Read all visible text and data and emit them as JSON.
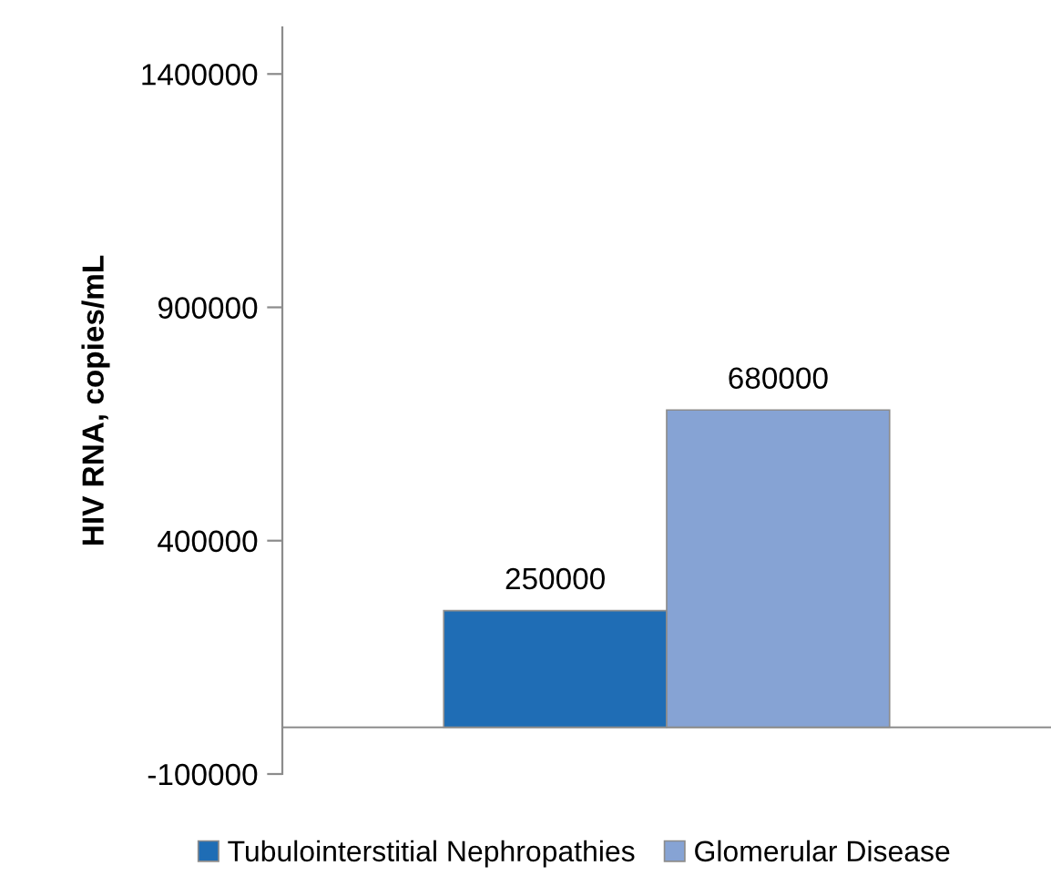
{
  "chart_data": {
    "type": "bar",
    "ylabel": "HIV RNA, copies/mL",
    "categories": [
      null
    ],
    "series": [
      {
        "name": "Tubulointerstitial Nephropathies",
        "color": "#1f6db5",
        "values": [
          250000
        ]
      },
      {
        "name": "Glomerular Disease",
        "color": "#86a3d4",
        "values": [
          680000
        ]
      }
    ],
    "ylim": [
      -100000,
      1500000
    ],
    "yticks": [
      -100000,
      400000,
      900000,
      1400000
    ],
    "data_labels": true,
    "grid": false,
    "legend": "bottom"
  }
}
